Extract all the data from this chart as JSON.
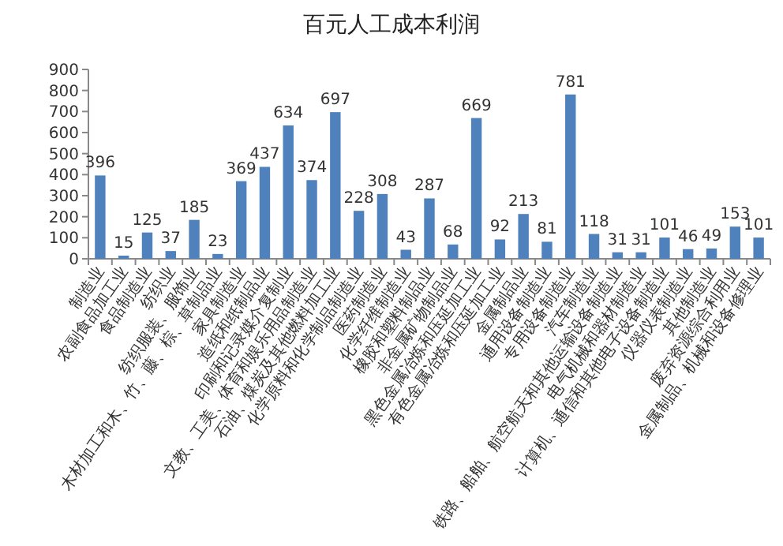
{
  "chart_data": {
    "type": "bar",
    "title": "百元人工成本利润",
    "categories": [
      "制造业",
      "农副食品加工业",
      "食品制造业",
      "纺织业",
      "纺织服装、服饰业",
      "木材加工和木、竹、藤、棕、草制品业",
      "家具制造业",
      "造纸和纸制品业",
      "印刷和记录媒介复制业",
      "文教、工美、体育和娱乐用品制造业",
      "石油、煤炭及其他燃料加工业",
      "化学原料和化学制品制造业",
      "医药制造业",
      "化学纤维制造业",
      "橡胶和塑料制品业",
      "非金属矿物制品业",
      "黑色金属冶炼和压延加工业",
      "有色金属冶炼和压延加工业",
      "金属制品业",
      "通用设备制造业",
      "专用设备制造业",
      "汽车制造业",
      "铁路、船舶、航空航天和其他运输设备制造业",
      "电气机械和器材制造业",
      "计算机、通信和其他电子设备制造业",
      "仪器仪表制造业",
      "其他制造业",
      "废弃资源综合利用业",
      "金属制品、机械和设备修理业"
    ],
    "values": [
      396,
      15,
      125,
      37,
      185,
      23,
      369,
      437,
      634,
      374,
      697,
      228,
      308,
      43,
      287,
      68,
      669,
      92,
      213,
      81,
      781,
      118,
      31,
      31,
      101,
      46,
      49,
      153,
      101
    ],
    "color": "#4f81bd",
    "ylim": [
      0,
      900
    ],
    "yticks": [
      0,
      100,
      200,
      300,
      400,
      500,
      600,
      700,
      800,
      900
    ],
    "data_labels": true
  }
}
